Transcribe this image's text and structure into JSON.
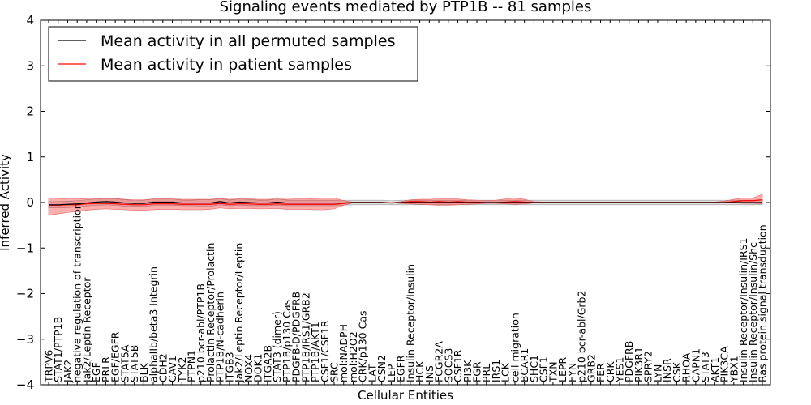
{
  "chart_data": {
    "type": "line",
    "title": "Signaling events mediated by PTP1B -- 81 samples",
    "xlabel": "Cellular Entities",
    "ylabel": "Inferred Activity",
    "ylim": [
      -4,
      4
    ],
    "yticks": [
      -4,
      -3,
      -2,
      -1,
      0,
      1,
      2,
      3,
      4
    ],
    "ytick_labels": [
      "−4",
      "−3",
      "−2",
      "−1",
      "0",
      "1",
      "2",
      "3",
      "4"
    ],
    "legend_position": "top-left",
    "categories": [
      "TRPV6",
      "STAT1/PTP1B",
      "JAK2",
      "negative regulation of transcription",
      "Jak2/Leptin Receptor",
      "EGF",
      "PRLR",
      "EGF/EGFR",
      "STAT5A",
      "STAT5B",
      "BLK",
      "alphaIIb/beta3 Integrin",
      "CDH2",
      "CAV1",
      "TYK2",
      "PTPN1",
      "p210 bcr-abl/PTP1B",
      "Prolactin Receptor/Prolactin",
      "PTP1B/N-cadherin",
      "ITGB3",
      "Jak2/Leptin Receptor/Leptin",
      "NOX4",
      "DOK1",
      "ITGA2B",
      "STAT3 (dimer)",
      "PTP1B/p130 Cas",
      "PDGFB-D/PDGFRB",
      "PTP1B/IRS1/GRB2",
      "PTP1B/AKT1",
      "CSF1/CSF1R",
      "SRC",
      "mol:NADPH",
      "mol:H2O2",
      "CRK/p130 Cas",
      "LAT",
      "CSN2",
      "LEP",
      "EGFR",
      "Insulin Receptor/Insulin",
      "HCK",
      "INS",
      "FCGR2A",
      "SOCS3",
      "CSF1R",
      "PI3K",
      "FGR",
      "PRL",
      "IRS1",
      "LCK",
      "cell migration",
      "BCAR1",
      "SHC1",
      "CSF1",
      "TXN",
      "LEPR",
      "FYN",
      "p210 bcr-abl/Grb2",
      "GRB2",
      "FER",
      "CRK",
      "YES1",
      "PDGFRB",
      "PIK3R1",
      "SPRY2",
      "LYN",
      "INSR",
      "CSK",
      "RHOA",
      "CAPN1",
      "STAT3",
      "AKT1",
      "PIK3CA",
      "YBX1",
      "Insulin Receptor/Insulin/IRS1",
      "Insulin Receptor/Insulin/Shc",
      "Ras protein signal transduction"
    ],
    "series": [
      {
        "name": "Mean activity in all permuted samples",
        "color": "#000000",
        "values": [
          -0.05,
          -0.05,
          -0.04,
          -0.03,
          -0.01,
          0.01,
          0.02,
          0.01,
          -0.01,
          -0.02,
          -0.02,
          0.01,
          0.01,
          0.01,
          -0.01,
          -0.01,
          -0.01,
          -0.01,
          0.02,
          -0.01,
          0.01,
          0.0,
          -0.01,
          -0.01,
          0.01,
          -0.01,
          -0.01,
          -0.01,
          -0.01,
          -0.01,
          -0.01,
          -0.01,
          0.0,
          0.0,
          0.0,
          0.0,
          -0.01,
          0.0,
          0.0,
          0.0,
          0.0,
          0.0,
          0.0,
          0.0,
          0.0,
          0.0,
          0.0,
          0.0,
          0.0,
          0.0,
          0.0,
          0.0,
          0.0,
          0.0,
          0.0,
          0.0,
          0.0,
          0.0,
          0.0,
          0.0,
          0.0,
          0.0,
          0.0,
          0.0,
          0.0,
          0.0,
          0.0,
          0.0,
          0.0,
          0.0,
          0.0,
          0.0,
          0.0,
          0.0,
          0.0,
          0.0
        ],
        "band_low": [
          -0.12,
          -0.12,
          -0.11,
          -0.1,
          -0.08,
          -0.06,
          -0.05,
          -0.06,
          -0.08,
          -0.08,
          -0.09,
          -0.06,
          -0.06,
          -0.06,
          -0.07,
          -0.07,
          -0.08,
          -0.08,
          -0.05,
          -0.07,
          -0.06,
          -0.07,
          -0.07,
          -0.07,
          -0.06,
          -0.07,
          -0.07,
          -0.07,
          -0.07,
          -0.07,
          -0.07,
          -0.06,
          -0.05,
          -0.05,
          -0.05,
          -0.05,
          -0.05,
          -0.05,
          -0.05,
          -0.05,
          -0.05,
          -0.05,
          -0.05,
          -0.05,
          -0.05,
          -0.05,
          -0.05,
          -0.05,
          -0.05,
          -0.05,
          -0.05,
          -0.05,
          -0.05,
          -0.05,
          -0.05,
          -0.05,
          -0.05,
          -0.05,
          -0.05,
          -0.05,
          -0.05,
          -0.05,
          -0.05,
          -0.05,
          -0.05,
          -0.05,
          -0.05,
          -0.05,
          -0.05,
          -0.05,
          -0.05,
          -0.05,
          -0.05,
          -0.05,
          -0.05,
          -0.05
        ],
        "band_high": [
          0.02,
          0.02,
          0.03,
          0.04,
          0.06,
          0.08,
          0.09,
          0.08,
          0.06,
          0.04,
          0.05,
          0.08,
          0.08,
          0.08,
          0.05,
          0.05,
          0.06,
          0.06,
          0.09,
          0.05,
          0.08,
          0.07,
          0.05,
          0.05,
          0.08,
          0.05,
          0.05,
          0.05,
          0.05,
          0.05,
          0.05,
          0.05,
          0.05,
          0.05,
          0.05,
          0.05,
          0.04,
          0.05,
          0.05,
          0.05,
          0.05,
          0.05,
          0.05,
          0.05,
          0.05,
          0.05,
          0.05,
          0.05,
          0.05,
          0.05,
          0.05,
          0.05,
          0.05,
          0.05,
          0.05,
          0.05,
          0.05,
          0.05,
          0.05,
          0.05,
          0.05,
          0.05,
          0.05,
          0.05,
          0.05,
          0.05,
          0.05,
          0.05,
          0.05,
          0.05,
          0.05,
          0.05,
          0.05,
          0.05,
          0.05,
          0.05
        ]
      },
      {
        "name": "Mean activity in patient samples",
        "color": "#ff0000",
        "values": [
          -0.06,
          -0.06,
          -0.05,
          -0.05,
          -0.03,
          -0.02,
          -0.02,
          -0.03,
          -0.04,
          -0.05,
          -0.05,
          -0.03,
          -0.03,
          -0.03,
          -0.04,
          -0.04,
          -0.04,
          -0.04,
          -0.02,
          -0.04,
          -0.03,
          -0.03,
          -0.04,
          -0.04,
          -0.03,
          -0.04,
          -0.04,
          -0.04,
          -0.04,
          -0.04,
          -0.04,
          -0.02,
          0.0,
          0.0,
          0.0,
          0.0,
          -0.01,
          0.0,
          0.02,
          0.02,
          0.01,
          0.02,
          0.01,
          0.02,
          0.01,
          0.01,
          0.0,
          0.0,
          0.01,
          0.02,
          0.01,
          0.0,
          0.0,
          0.0,
          0.0,
          0.0,
          0.0,
          0.0,
          0.0,
          0.0,
          0.0,
          0.0,
          0.0,
          0.0,
          0.0,
          0.0,
          0.0,
          0.0,
          0.0,
          0.0,
          0.0,
          0.0,
          0.02,
          0.04,
          0.04,
          0.06
        ],
        "band_low": [
          -0.28,
          -0.25,
          -0.22,
          -0.2,
          -0.17,
          -0.15,
          -0.14,
          -0.15,
          -0.16,
          -0.17,
          -0.17,
          -0.16,
          -0.15,
          -0.15,
          -0.16,
          -0.16,
          -0.16,
          -0.15,
          -0.12,
          -0.14,
          -0.13,
          -0.13,
          -0.14,
          -0.14,
          -0.13,
          -0.15,
          -0.15,
          -0.15,
          -0.16,
          -0.16,
          -0.14,
          -0.06,
          -0.01,
          -0.01,
          -0.01,
          -0.01,
          -0.01,
          -0.02,
          -0.03,
          -0.04,
          -0.05,
          -0.06,
          -0.06,
          -0.05,
          -0.04,
          -0.03,
          -0.02,
          -0.02,
          -0.03,
          -0.04,
          -0.03,
          -0.01,
          -0.01,
          -0.01,
          -0.01,
          -0.01,
          -0.01,
          -0.01,
          -0.01,
          -0.01,
          -0.01,
          -0.01,
          -0.01,
          -0.01,
          -0.01,
          -0.01,
          -0.01,
          -0.01,
          -0.01,
          -0.01,
          -0.01,
          -0.01,
          -0.01,
          -0.02,
          -0.02,
          -0.03
        ],
        "band_high": [
          0.1,
          0.09,
          0.08,
          0.08,
          0.09,
          0.1,
          0.1,
          0.09,
          0.07,
          0.06,
          0.06,
          0.08,
          0.08,
          0.08,
          0.07,
          0.07,
          0.07,
          0.07,
          0.09,
          0.07,
          0.08,
          0.08,
          0.07,
          0.07,
          0.08,
          0.07,
          0.08,
          0.08,
          0.09,
          0.1,
          0.1,
          0.04,
          0.01,
          0.01,
          0.01,
          0.01,
          0.0,
          0.02,
          0.06,
          0.07,
          0.07,
          0.08,
          0.08,
          0.08,
          0.06,
          0.05,
          0.04,
          0.05,
          0.08,
          0.1,
          0.07,
          0.02,
          0.01,
          0.01,
          0.01,
          0.01,
          0.01,
          0.01,
          0.01,
          0.01,
          0.01,
          0.01,
          0.01,
          0.01,
          0.01,
          0.01,
          0.01,
          0.01,
          0.01,
          0.01,
          0.01,
          0.03,
          0.07,
          0.1,
          0.1,
          0.18
        ]
      }
    ]
  }
}
